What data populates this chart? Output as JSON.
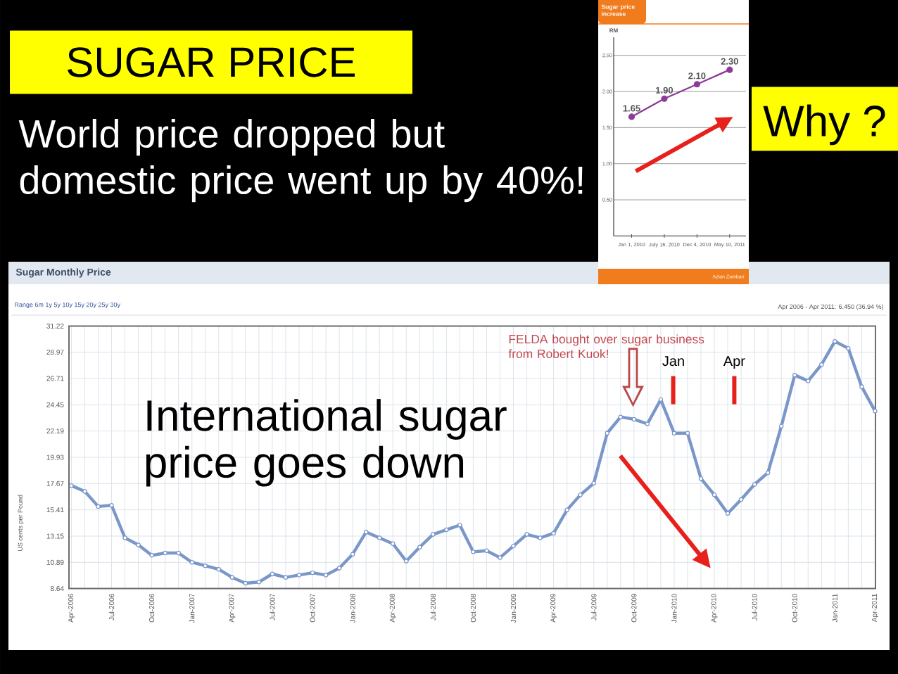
{
  "chart_data": [
    {
      "type": "other",
      "title": "SUGAR PRICE",
      "subtitle": "World price dropped but domestic price went up by 40%!",
      "annotations": [
        "Why ?"
      ]
    },
    {
      "type": "line",
      "title": "Sugar price increase",
      "ylabel": "RM",
      "categories": [
        "Jan 1, 2010",
        "July 16, 2010",
        "Dec 4, 2010",
        "May 10, 2011"
      ],
      "series": [
        {
          "color": "#8b3d96",
          "values": [
            1.65,
            1.9,
            2.1,
            2.3
          ],
          "value_labels": [
            "1.65",
            "1.90",
            "2.10",
            "2.30"
          ]
        }
      ],
      "ylim": [
        0,
        2.75
      ],
      "yticks": [
        {
          "value": 0.5,
          "label": "0.50"
        },
        {
          "value": 1.0,
          "label": "1.00"
        },
        {
          "value": 1.5,
          "label": "1.50"
        },
        {
          "value": 2.0,
          "label": "2.00"
        },
        {
          "value": 2.5,
          "label": "2.50"
        }
      ],
      "grid": "y",
      "marker": "circle",
      "annotations": [
        "Azlan Zambari"
      ]
    },
    {
      "type": "line",
      "title": "Sugar Monthly Price",
      "subtitle": "Apr 2006 - Apr 2011: 6.450 (36.94 %)",
      "ylabel": "US cents per Pound",
      "categories": [
        "Apr-2006",
        null,
        null,
        "Jul-2006",
        null,
        null,
        "Oct-2006",
        null,
        null,
        "Jan-2007",
        null,
        null,
        "Apr-2007",
        null,
        null,
        "Jul-2007",
        null,
        null,
        "Oct-2007",
        null,
        null,
        "Jan-2008",
        null,
        null,
        "Apr-2008",
        null,
        null,
        "Jul-2008",
        null,
        null,
        "Oct-2008",
        null,
        null,
        "Jan-2009",
        null,
        null,
        "Apr-2009",
        null,
        null,
        "Jul-2009",
        null,
        null,
        "Oct-2009",
        null,
        null,
        "Jan-2010",
        null,
        null,
        "Apr-2010",
        null,
        null,
        "Jul-2010",
        null,
        null,
        "Oct-2010",
        null,
        null,
        "Jan-2011",
        null,
        null,
        "Apr-2011"
      ],
      "series": [
        {
          "color": "#7b96c8",
          "values": [
            17.5,
            17.0,
            15.7,
            15.8,
            13.0,
            12.4,
            11.5,
            11.7,
            11.7,
            10.9,
            10.6,
            10.3,
            9.6,
            9.1,
            9.2,
            9.9,
            9.6,
            9.8,
            10.0,
            9.8,
            10.4,
            11.6,
            13.5,
            13.0,
            12.5,
            11.0,
            12.2,
            13.3,
            13.7,
            14.1,
            11.8,
            11.9,
            11.3,
            12.3,
            13.3,
            13.0,
            13.4,
            15.4,
            16.7,
            17.7,
            22.0,
            23.4,
            23.2,
            22.8,
            24.9,
            22.0,
            22.0,
            18.1,
            16.7,
            15.1,
            16.3,
            17.6,
            18.6,
            22.6,
            27.0,
            26.5,
            27.9,
            29.9,
            29.3,
            26.0,
            23.9
          ]
        }
      ],
      "ylim": [
        8.64,
        31.22
      ],
      "yticks": [
        8.64,
        10.89,
        13.15,
        15.41,
        17.67,
        19.93,
        22.19,
        24.45,
        26.71,
        28.97,
        31.22
      ],
      "grid": true,
      "marker": "circle",
      "annotations": [
        "Range 6m 1y 5y 10y 15y 20y 25y 30y",
        "FELDA bought over sugar business from Robert Kuok!",
        "Jan",
        "Apr",
        "International sugar price goes down"
      ]
    }
  ]
}
